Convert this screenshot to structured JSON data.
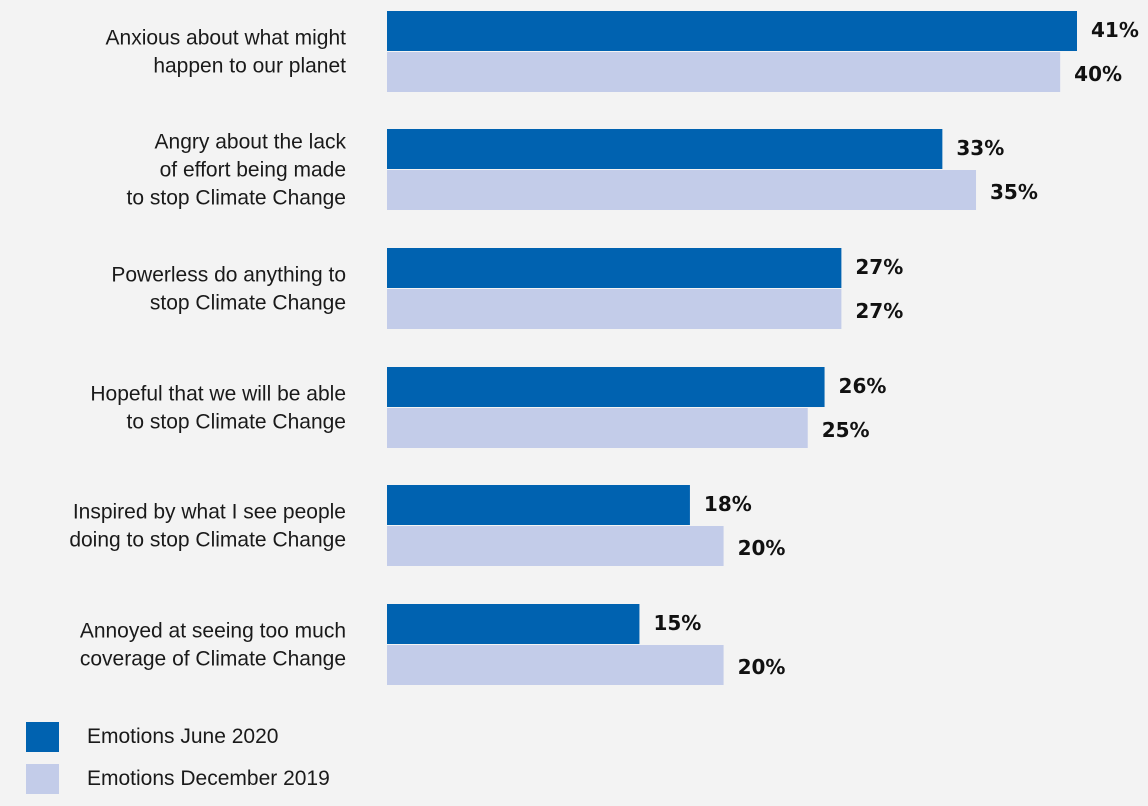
{
  "chart_data": {
    "type": "bar",
    "orientation": "horizontal",
    "categories": [
      [
        "Anxious about what might",
        "happen to our planet"
      ],
      [
        "Angry about the lack",
        "of effort being made",
        "to stop Climate Change"
      ],
      [
        "Powerless do anything to",
        "stop Climate Change"
      ],
      [
        "Hopeful that we will be able",
        "to stop Climate Change"
      ],
      [
        "Inspired by what I see people",
        "doing to stop Climate Change"
      ],
      [
        "Annoyed at seeing too much",
        "coverage of Climate Change"
      ]
    ],
    "series": [
      {
        "name": "Emotions June 2020",
        "color": "#0062b0",
        "values": [
          41,
          33,
          27,
          26,
          18,
          15
        ],
        "labels": [
          "41%",
          "33%",
          "27%",
          "26%",
          "18%",
          "15%"
        ]
      },
      {
        "name": "Emotions December 2019",
        "color": "#c3cce9",
        "values": [
          40,
          35,
          27,
          25,
          20,
          20
        ],
        "labels": [
          "40%",
          "35%",
          "27%",
          "25%",
          "20%",
          "20%"
        ]
      }
    ],
    "xlim": [
      0,
      41
    ],
    "grid": false,
    "legend": "bottom-left"
  }
}
